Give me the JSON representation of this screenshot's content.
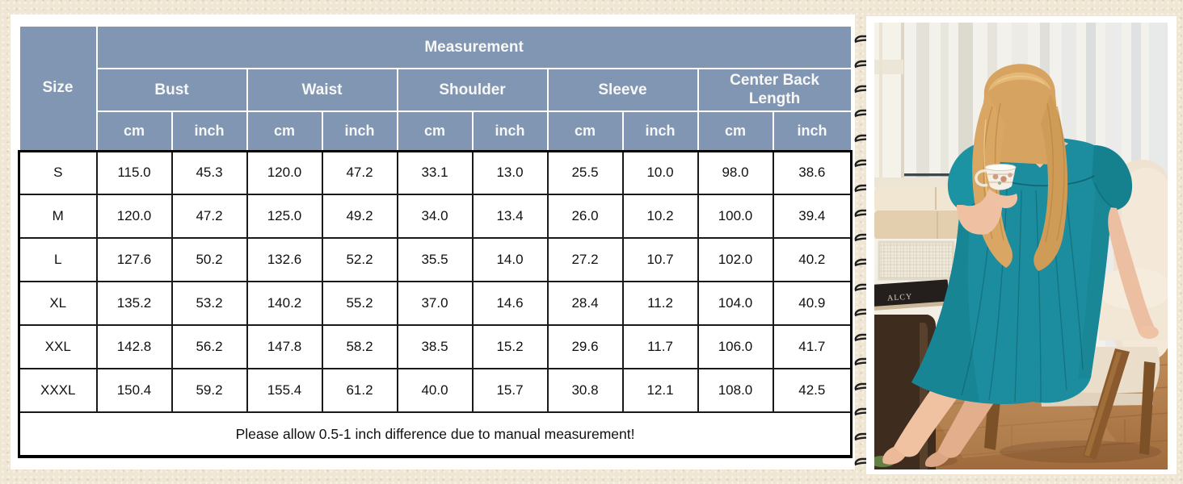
{
  "sizing_table": {
    "title": "Measurement",
    "size_column_label": "Size",
    "groups": [
      "Bust",
      "Waist",
      "Shoulder",
      "Sleeve",
      "Center Back Length"
    ],
    "units": [
      "cm",
      "inch"
    ],
    "rows": [
      {
        "size": "S",
        "values": [
          "115.0",
          "45.3",
          "120.0",
          "47.2",
          "33.1",
          "13.0",
          "25.5",
          "10.0",
          "98.0",
          "38.6"
        ]
      },
      {
        "size": "M",
        "values": [
          "120.0",
          "47.2",
          "125.0",
          "49.2",
          "34.0",
          "13.4",
          "26.0",
          "10.2",
          "100.0",
          "39.4"
        ]
      },
      {
        "size": "L",
        "values": [
          "127.6",
          "50.2",
          "132.6",
          "52.2",
          "35.5",
          "14.0",
          "27.2",
          "10.7",
          "102.0",
          "40.2"
        ]
      },
      {
        "size": "XL",
        "values": [
          "135.2",
          "53.2",
          "140.2",
          "55.2",
          "37.0",
          "14.6",
          "28.4",
          "11.2",
          "104.0",
          "40.9"
        ]
      },
      {
        "size": "XXL",
        "values": [
          "142.8",
          "56.2",
          "147.8",
          "58.2",
          "38.5",
          "15.2",
          "29.6",
          "11.7",
          "106.0",
          "41.7"
        ]
      },
      {
        "size": "XXXL",
        "values": [
          "150.4",
          "59.2",
          "155.4",
          "61.2",
          "40.0",
          "15.7",
          "30.8",
          "12.1",
          "108.0",
          "42.5"
        ]
      }
    ],
    "footnote": "Please allow 0.5-1 inch difference due to manual measurement!"
  },
  "photo": {
    "book_spine_text": "ALCY"
  },
  "colors": {
    "header_blue": "#8096b2",
    "page_beige": "#efe6d4",
    "gown_teal": "#1b8d9e"
  },
  "chart_data": {
    "type": "table",
    "title": "Measurement",
    "row_header": "Size",
    "column_groups": [
      "Bust",
      "Waist",
      "Shoulder",
      "Sleeve",
      "Center Back Length"
    ],
    "units_per_group": [
      "cm",
      "inch"
    ],
    "columns": [
      "Size",
      "Bust cm",
      "Bust inch",
      "Waist cm",
      "Waist inch",
      "Shoulder cm",
      "Shoulder inch",
      "Sleeve cm",
      "Sleeve inch",
      "Center Back Length cm",
      "Center Back Length inch"
    ],
    "rows": [
      [
        "S",
        115.0,
        45.3,
        120.0,
        47.2,
        33.1,
        13.0,
        25.5,
        10.0,
        98.0,
        38.6
      ],
      [
        "M",
        120.0,
        47.2,
        125.0,
        49.2,
        34.0,
        13.4,
        26.0,
        10.2,
        100.0,
        39.4
      ],
      [
        "L",
        127.6,
        50.2,
        132.6,
        52.2,
        35.5,
        14.0,
        27.2,
        10.7,
        102.0,
        40.2
      ],
      [
        "XL",
        135.2,
        53.2,
        140.2,
        55.2,
        37.0,
        14.6,
        28.4,
        11.2,
        104.0,
        40.9
      ],
      [
        "XXL",
        142.8,
        56.2,
        147.8,
        58.2,
        38.5,
        15.2,
        29.6,
        11.7,
        106.0,
        41.7
      ],
      [
        "XXXL",
        150.4,
        59.2,
        155.4,
        61.2,
        40.0,
        15.7,
        30.8,
        12.1,
        108.0,
        42.5
      ]
    ],
    "footnote": "Please allow 0.5-1 inch difference due to manual measurement!"
  }
}
